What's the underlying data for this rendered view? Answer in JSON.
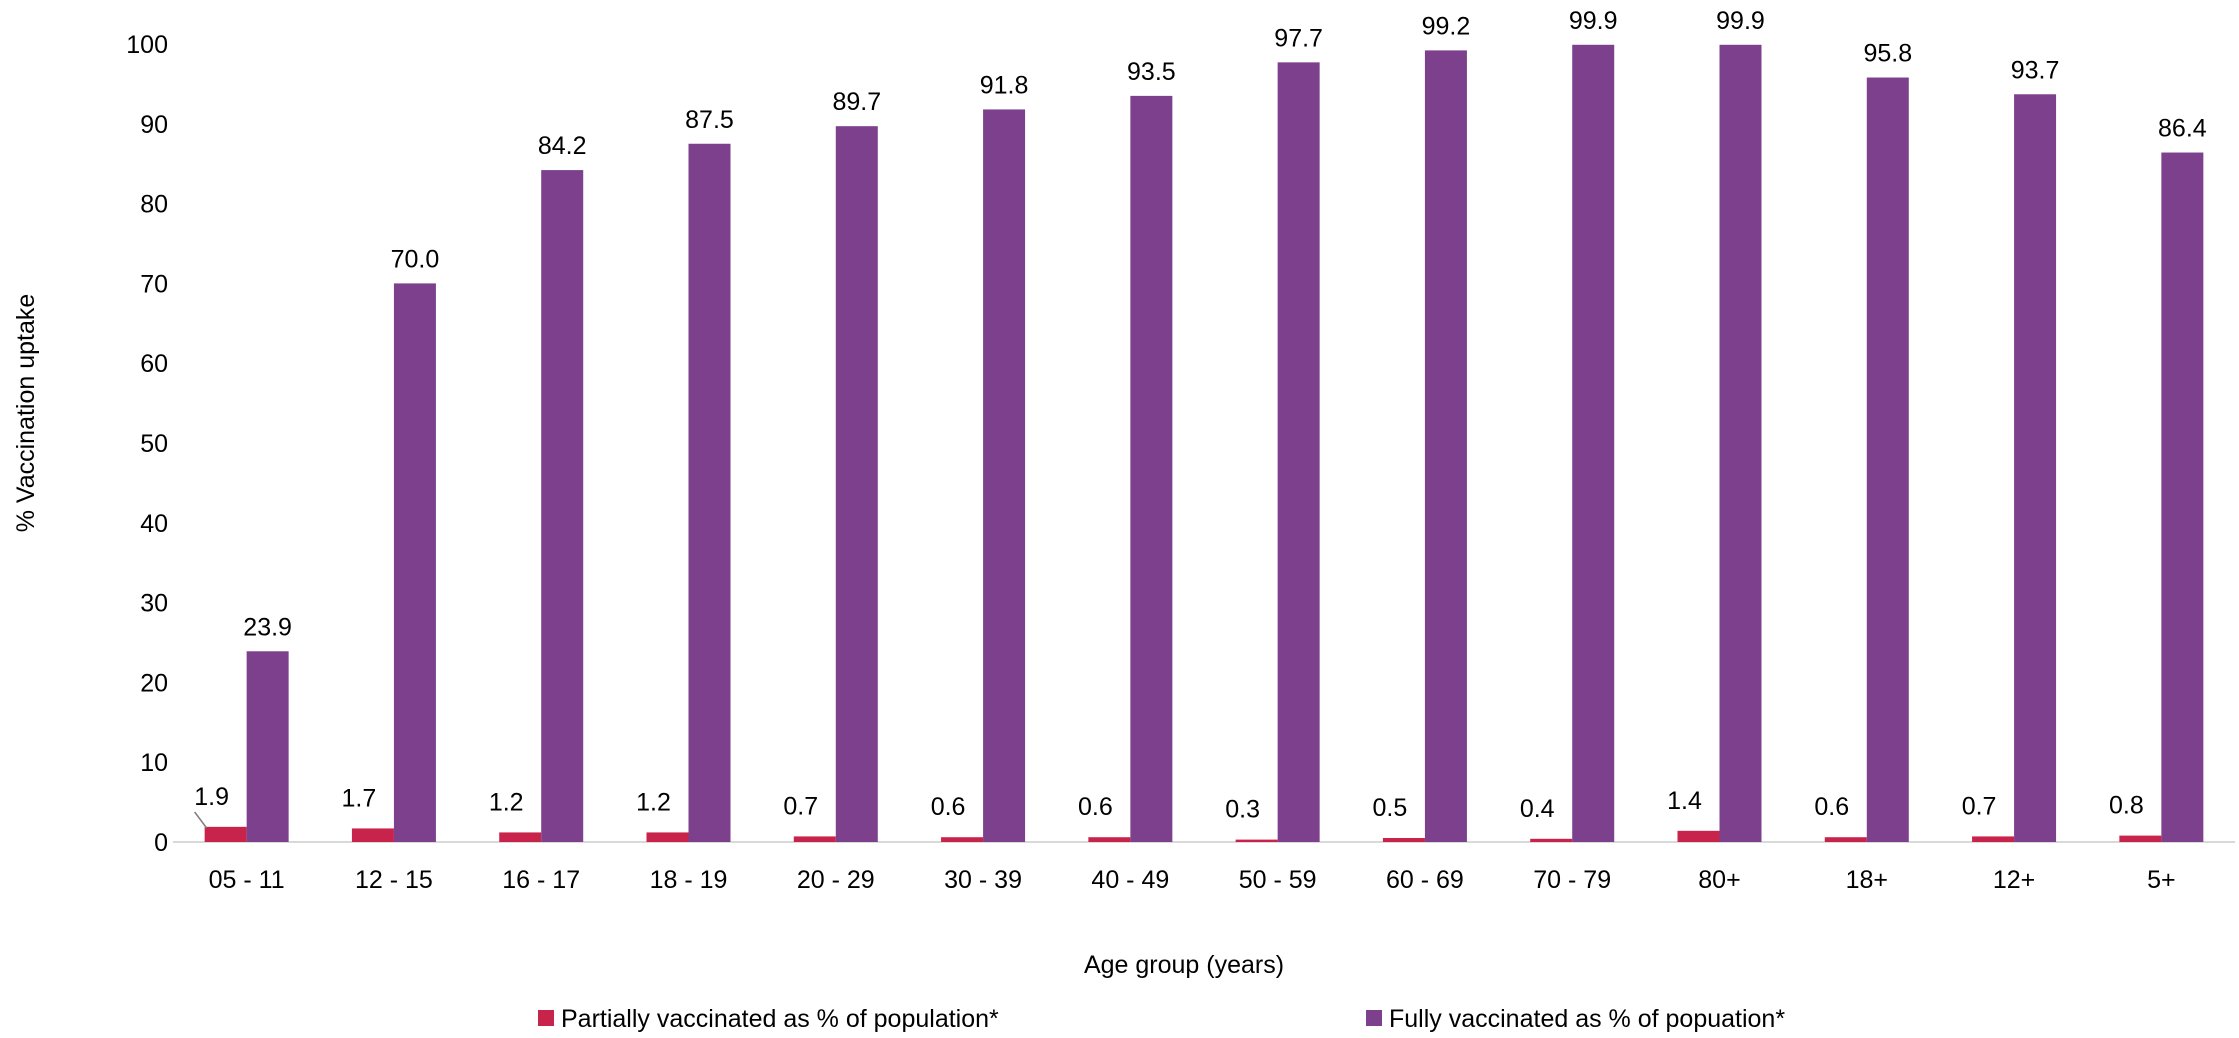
{
  "chart_data": {
    "type": "bar",
    "title": "",
    "xlabel": "Age group (years)",
    "ylabel": "% Vaccination uptake",
    "ylim": [
      0,
      100
    ],
    "ytick_step": 10,
    "yticks": [
      "0",
      "10",
      "20",
      "30",
      "40",
      "50",
      "60",
      "70",
      "80",
      "90",
      "100"
    ],
    "grid": false,
    "legend_position": "bottom",
    "categories": [
      "05 - 11",
      "12 - 15",
      "16 - 17",
      "18 - 19",
      "20 - 29",
      "30 - 39",
      "40 - 49",
      "50 - 59",
      "60 - 69",
      "70 - 79",
      "80+",
      "18+",
      "12+",
      "5+"
    ],
    "series": [
      {
        "name": "Partially vaccinated as % of population*",
        "color": "#c8234a",
        "values": [
          1.9,
          1.7,
          1.2,
          1.2,
          0.7,
          0.6,
          0.6,
          0.3,
          0.5,
          0.4,
          1.4,
          0.6,
          0.7,
          0.8
        ],
        "labels": [
          "1.9",
          "1.7",
          "1.2",
          "1.2",
          "0.7",
          "0.6",
          "0.6",
          "0.3",
          "0.5",
          "0.4",
          "1.4",
          "0.6",
          "0.7",
          "0.8"
        ]
      },
      {
        "name": "Fully vaccinated as % of popuation*",
        "color": "#7d408c",
        "values": [
          23.9,
          70.0,
          84.2,
          87.5,
          89.7,
          91.8,
          93.5,
          97.7,
          99.2,
          99.9,
          99.9,
          95.8,
          93.7,
          86.4
        ],
        "labels": [
          "23.9",
          "70.0",
          "84.2",
          "87.5",
          "89.7",
          "91.8",
          "93.5",
          "97.7",
          "99.2",
          "99.9",
          "99.9",
          "95.8",
          "93.7",
          "86.4"
        ]
      }
    ]
  }
}
